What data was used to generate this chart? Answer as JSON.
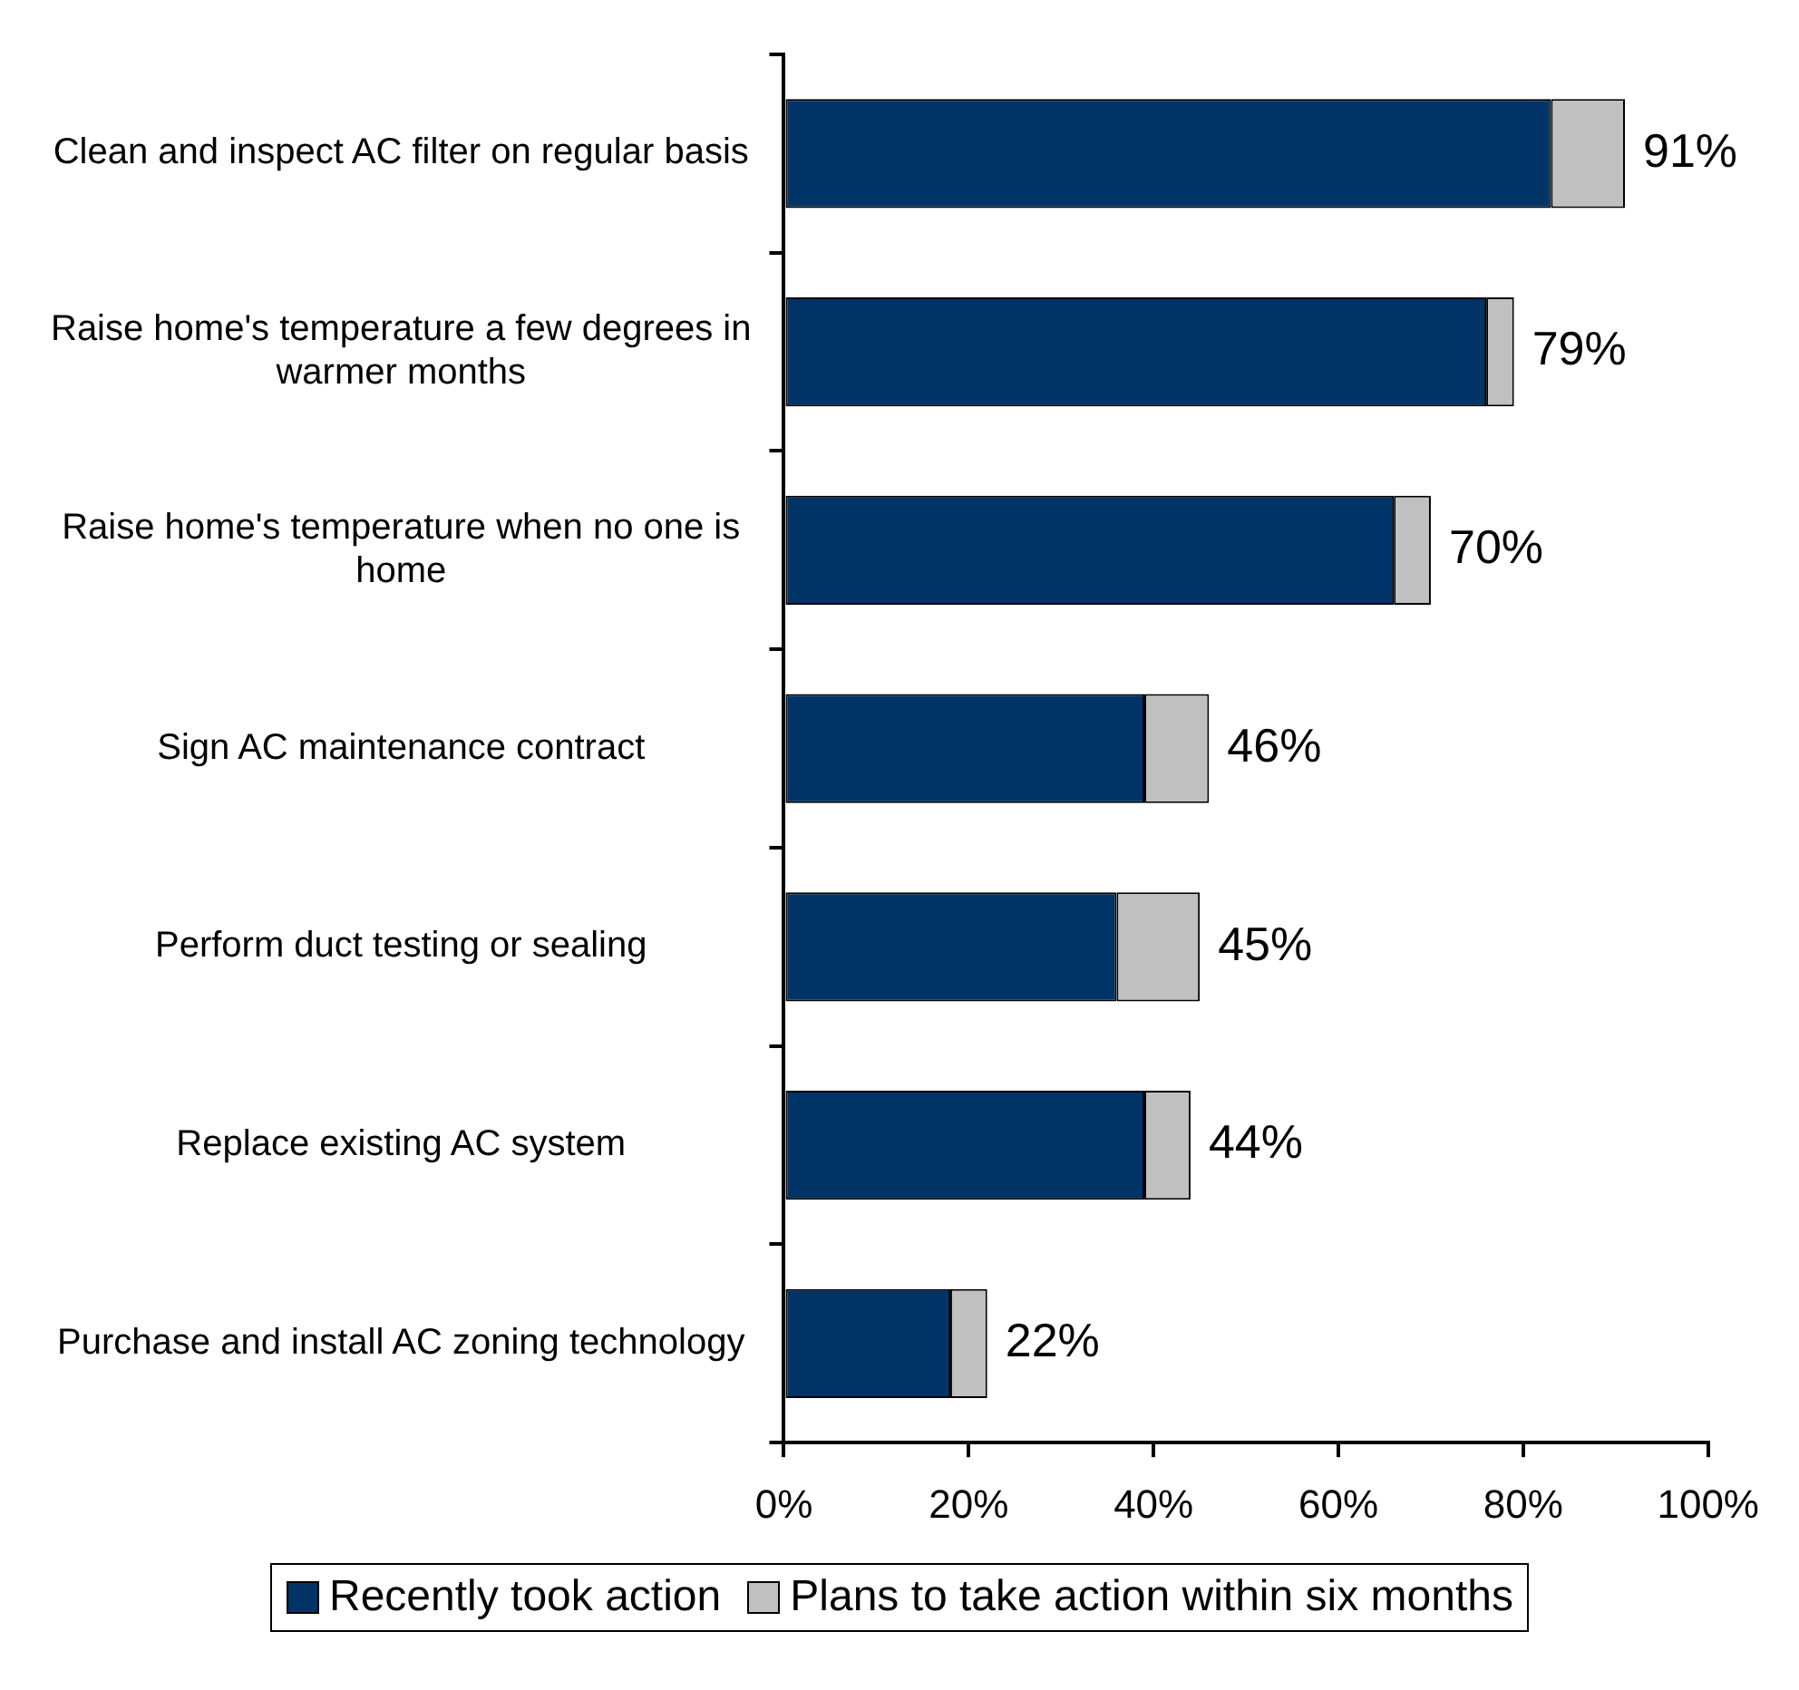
{
  "chart_data": {
    "type": "bar",
    "orientation": "horizontal",
    "stacked": true,
    "categories": [
      "Clean and inspect AC filter on regular basis",
      "Raise home's temperature a few degrees in warmer months",
      "Raise home's temperature when no one is home",
      "Sign AC maintenance contract",
      "Perform duct testing or sealing",
      "Replace existing AC system",
      "Purchase and install AC zoning technology"
    ],
    "series": [
      {
        "name": "Recently took action",
        "color": "#003366",
        "values": [
          83,
          76,
          66,
          39,
          36,
          39,
          18
        ]
      },
      {
        "name": "Plans to take action within six months",
        "color": "#c0c0c0",
        "values": [
          8,
          3,
          4,
          7,
          9,
          5,
          4
        ]
      }
    ],
    "totals": [
      "91%",
      "79%",
      "70%",
      "46%",
      "45%",
      "44%",
      "22%"
    ],
    "xlim": [
      0,
      100
    ],
    "xticks": [
      {
        "value": 0,
        "label": "0%"
      },
      {
        "value": 20,
        "label": "20%"
      },
      {
        "value": 40,
        "label": "40%"
      },
      {
        "value": 60,
        "label": "60%"
      },
      {
        "value": 80,
        "label": "80%"
      },
      {
        "value": 100,
        "label": "100%"
      }
    ],
    "grid": false,
    "legend": "bottom"
  }
}
